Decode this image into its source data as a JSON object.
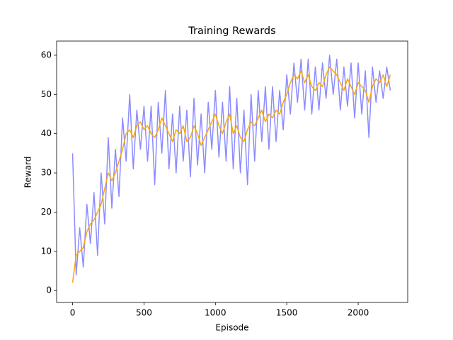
{
  "chart_data": {
    "type": "line",
    "title": "Training Rewards",
    "x_label": "Episode",
    "y_label": "Reward",
    "x": [
      0,
      25,
      50,
      75,
      100,
      125,
      150,
      175,
      200,
      225,
      250,
      275,
      300,
      325,
      350,
      375,
      400,
      425,
      450,
      475,
      500,
      525,
      550,
      575,
      600,
      625,
      650,
      675,
      700,
      725,
      750,
      775,
      800,
      825,
      850,
      875,
      900,
      925,
      950,
      975,
      1000,
      1025,
      1050,
      1075,
      1100,
      1125,
      1150,
      1175,
      1200,
      1225,
      1250,
      1275,
      1300,
      1325,
      1350,
      1375,
      1400,
      1425,
      1450,
      1475,
      1500,
      1525,
      1550,
      1575,
      1600,
      1625,
      1650,
      1675,
      1700,
      1725,
      1750,
      1775,
      1800,
      1825,
      1850,
      1875,
      1900,
      1925,
      1950,
      1975,
      2000,
      2025,
      2050,
      2075,
      2100,
      2125,
      2150,
      2175,
      2200,
      2225
    ],
    "series": [
      {
        "color": "#8c8cff",
        "values": [
          35,
          4,
          16,
          6,
          22,
          12,
          25,
          9,
          30,
          17,
          39,
          21,
          36,
          24,
          44,
          33,
          50,
          31,
          46,
          36,
          47,
          33,
          47,
          27,
          48,
          35,
          51,
          31,
          45,
          30,
          47,
          33,
          46,
          29,
          49,
          32,
          45,
          30,
          48,
          36,
          51,
          34,
          48,
          33,
          52,
          31,
          49,
          30,
          46,
          27,
          50,
          33,
          51,
          38,
          52,
          36,
          52,
          38,
          51,
          41,
          55,
          45,
          58,
          48,
          59,
          46,
          59,
          45,
          57,
          46,
          58,
          49,
          60,
          50,
          59,
          46,
          57,
          47,
          58,
          44,
          58,
          45,
          56,
          39,
          57,
          48,
          56,
          49,
          57,
          51
        ]
      },
      {
        "color": "#ffa500",
        "values": [
          2,
          9,
          10,
          11,
          15,
          17,
          18,
          20,
          22,
          26,
          30,
          28,
          30,
          33,
          36,
          40,
          41,
          39,
          42,
          43,
          41,
          42,
          40,
          39,
          41,
          44,
          42,
          40,
          38,
          41,
          40,
          42,
          38,
          39,
          42,
          40,
          37,
          39,
          41,
          43,
          45,
          42,
          40,
          43,
          45,
          40,
          42,
          39,
          38,
          41,
          43,
          42,
          44,
          46,
          43,
          45,
          44,
          46,
          45,
          48,
          50,
          53,
          55,
          54,
          56,
          53,
          55,
          52,
          51,
          53,
          52,
          55,
          57,
          56,
          55,
          53,
          51,
          54,
          52,
          50,
          53,
          52,
          51,
          48,
          52,
          54,
          53,
          55,
          52,
          55
        ]
      }
    ],
    "xlim": [
      -111.75,
      2346.75
    ],
    "ylim": [
      -3.03,
      63.6
    ],
    "xticks": [
      0,
      500,
      1000,
      1500,
      2000
    ],
    "yticks": [
      0,
      10,
      20,
      30,
      40,
      50,
      60
    ]
  }
}
